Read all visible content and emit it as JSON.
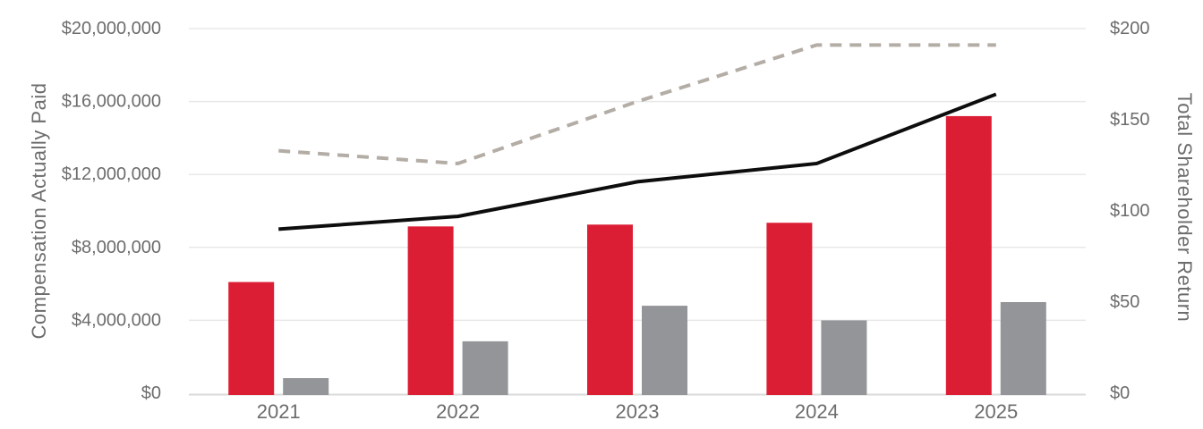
{
  "chart_data": {
    "type": "bar",
    "subtype": "combo-bar-line-dual-axis",
    "title": "",
    "categories": [
      "2021",
      "2022",
      "2023",
      "2024",
      "2025"
    ],
    "series": [
      {
        "name": "red-bars",
        "render": "bar",
        "axis": "left",
        "color": "#DC1E35",
        "values": [
          6100000,
          9150000,
          9250000,
          9350000,
          15200000
        ]
      },
      {
        "name": "gray-bars",
        "render": "bar",
        "axis": "left",
        "color": "#939598",
        "values": [
          830000,
          2850000,
          4800000,
          4000000,
          5000000
        ]
      },
      {
        "name": "gray-dashed-line",
        "render": "line",
        "line_style": "dashed",
        "axis": "right",
        "color": "#B3ADA6",
        "values": [
          133,
          126,
          160,
          191,
          191
        ]
      },
      {
        "name": "black-solid-line",
        "render": "line",
        "line_style": "solid",
        "axis": "right",
        "color": "#0D0D0D",
        "values": [
          90,
          97,
          116,
          126,
          164
        ]
      }
    ],
    "left_axis": {
      "title": "Compensation Actually Paid",
      "min": 0,
      "max": 20000000,
      "tick_step": 4000000,
      "tick_labels": [
        "$0",
        "$4,000,000",
        "$8,000,000",
        "$12,000,000",
        "$16,000,000",
        "$20,000,000"
      ]
    },
    "right_axis": {
      "title": "Total Shareholder Return",
      "min": 0,
      "max": 200,
      "tick_step": 50,
      "tick_labels": [
        "$0",
        "$50",
        "$100",
        "$150",
        "$200"
      ]
    },
    "grid": true,
    "legend": false
  },
  "colors": {
    "background": "#FFFFFF",
    "gridline": "#E8E8E8",
    "axis_line": "#DADADA",
    "tick_text": "#6C6C6C"
  }
}
